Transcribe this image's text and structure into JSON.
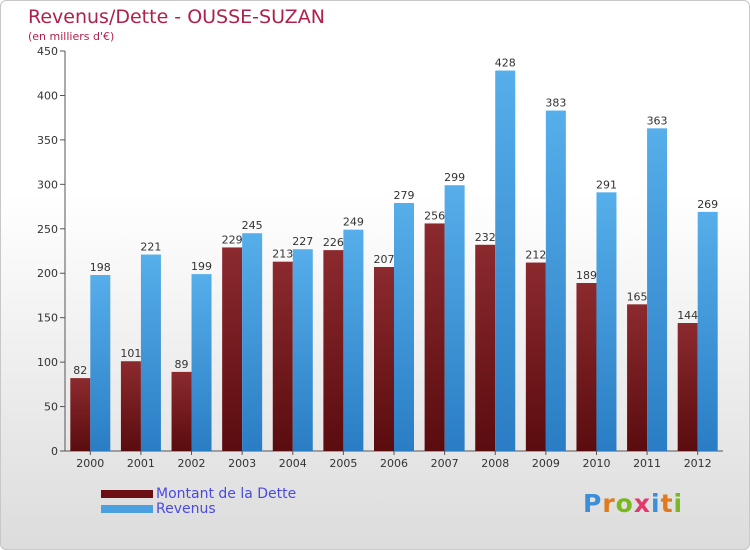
{
  "title": "Revenus/Dette - OUSSE-SUZAN",
  "subtitle": "(en milliers d'€)",
  "colors": {
    "dette": "#7a1f23",
    "revenus": "#4aa0e0",
    "title": "#b0204c",
    "legend_text": "#4a4ae0"
  },
  "legend": [
    {
      "label": "Montant de la Dette",
      "color": "#6b0f12"
    },
    {
      "label": "Revenus",
      "color": "#4aa0e0"
    }
  ],
  "logo": {
    "letters": [
      "P",
      "r",
      "o",
      "x",
      "i",
      "t",
      "i"
    ]
  },
  "chart_data": {
    "type": "bar",
    "categories": [
      "2000",
      "2001",
      "2002",
      "2003",
      "2004",
      "2005",
      "2006",
      "2007",
      "2008",
      "2009",
      "2010",
      "2011",
      "2012"
    ],
    "series": [
      {
        "name": "Montant de la Dette",
        "values": [
          82,
          101,
          89,
          229,
          213,
          226,
          207,
          256,
          232,
          212,
          189,
          165,
          144
        ]
      },
      {
        "name": "Revenus",
        "values": [
          198,
          221,
          199,
          245,
          227,
          249,
          279,
          299,
          428,
          383,
          291,
          363,
          269
        ]
      }
    ],
    "ylim": [
      0,
      450
    ],
    "yticks": [
      0,
      50,
      100,
      150,
      200,
      250,
      300,
      350,
      400,
      450
    ],
    "grid": false,
    "legend_position": "bottom-left"
  }
}
